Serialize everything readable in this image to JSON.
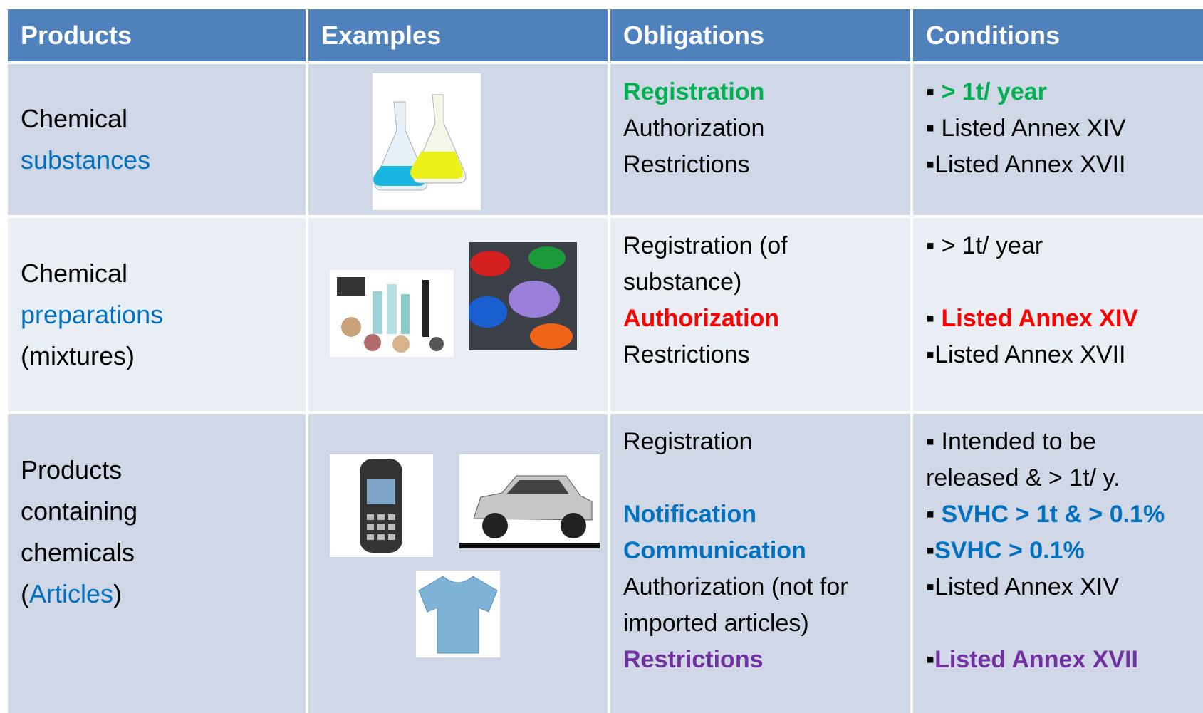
{
  "table": {
    "header": [
      "Products",
      "Examples",
      "Obligations",
      "Conditions"
    ],
    "rows": [
      {
        "product": [
          "Chemical",
          "substances"
        ],
        "obligations": [
          "Registration",
          "Authorization",
          "Restrictions"
        ],
        "conditions": [
          "> 1t/ year",
          "Listed Annex XIV",
          "Listed Annex XVII"
        ]
      },
      {
        "product": [
          "Chemical",
          "preparations",
          "(mixtures)"
        ],
        "obligations": [
          "Registration (of",
          "substance)",
          "Authorization",
          "Restrictions"
        ],
        "conditions": [
          "> 1t/ year",
          "Listed Annex XIV",
          "Listed Annex XVII"
        ]
      },
      {
        "product": [
          "Products",
          "containing",
          "chemicals",
          "(",
          "Articles",
          ")"
        ],
        "obligations": [
          "Registration",
          "Notification",
          "Communication",
          "Authorization (not for",
          "imported articles)",
          "Restrictions"
        ],
        "conditions": [
          "Intended to be",
          "released & > 1t/ y.",
          "SVHC > 1t & > 0.1%",
          "SVHC > 0.1%",
          "Listed Annex XIV",
          "Listed Annex XVII"
        ]
      }
    ]
  }
}
